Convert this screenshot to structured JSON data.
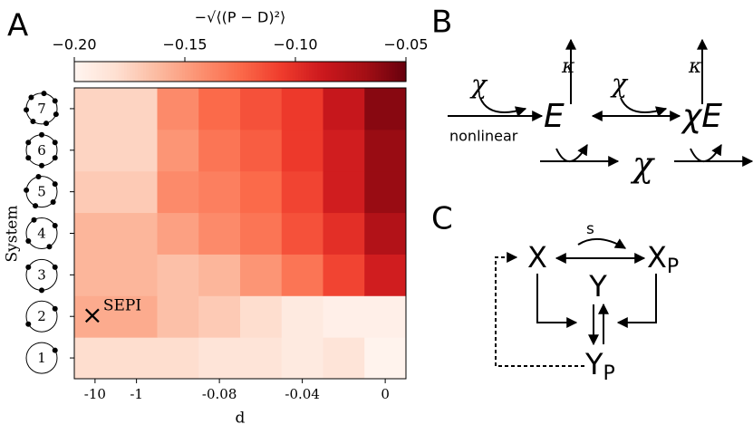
{
  "chart_data": {
    "type": "heatmap",
    "panel_label": "A",
    "colorbar_title": "−√⟨(P − D)²⟩",
    "xlabel": "d",
    "ylabel": "System",
    "x_categories": [
      "-10",
      "-1",
      null,
      "-0.08",
      null,
      "-0.04",
      null,
      "0"
    ],
    "y_categories": [
      "1",
      "2",
      "3",
      "4",
      "5",
      "6",
      "7"
    ],
    "values": [
      [
        -0.18,
        -0.18,
        -0.18,
        -0.185,
        -0.185,
        -0.19,
        -0.185,
        -0.198
      ],
      [
        -0.155,
        -0.155,
        -0.165,
        -0.17,
        -0.18,
        -0.19,
        -0.195,
        -0.195
      ],
      [
        -0.16,
        -0.16,
        -0.165,
        -0.16,
        -0.145,
        -0.13,
        -0.11,
        -0.09
      ],
      [
        -0.16,
        -0.16,
        -0.15,
        -0.14,
        -0.13,
        -0.115,
        -0.1,
        -0.075
      ],
      [
        -0.17,
        -0.17,
        -0.14,
        -0.135,
        -0.125,
        -0.11,
        -0.09,
        -0.065
      ],
      [
        -0.175,
        -0.175,
        -0.145,
        -0.13,
        -0.12,
        -0.105,
        -0.09,
        -0.065
      ],
      [
        -0.175,
        -0.175,
        -0.14,
        -0.125,
        -0.115,
        -0.105,
        -0.085,
        -0.06
      ]
    ],
    "clim": [
      -0.2,
      -0.05
    ],
    "cticks": [
      {
        "value": -0.2,
        "label": "−0.20"
      },
      {
        "value": -0.15,
        "label": "−0.15"
      },
      {
        "value": -0.1,
        "label": "−0.10"
      },
      {
        "value": -0.05,
        "label": "−0.05"
      }
    ],
    "colormap": "Reds",
    "annotation": {
      "text": "SEPI",
      "marker": "×"
    }
  },
  "diagram_b": {
    "panel_label": "B",
    "kappa_left": "κ",
    "kappa_right": "κ",
    "chi_left": "χ",
    "chi_mid": "χ",
    "E": "E",
    "chiE": "χE",
    "nonlinear": "nonlinear",
    "chi_bottom": "χ"
  },
  "diagram_c": {
    "panel_label": "C",
    "s": "s",
    "X": "X",
    "XP": {
      "main": "X",
      "sub": "P"
    },
    "Y": "Y",
    "YP": {
      "main": "Y",
      "sub": "P"
    }
  }
}
